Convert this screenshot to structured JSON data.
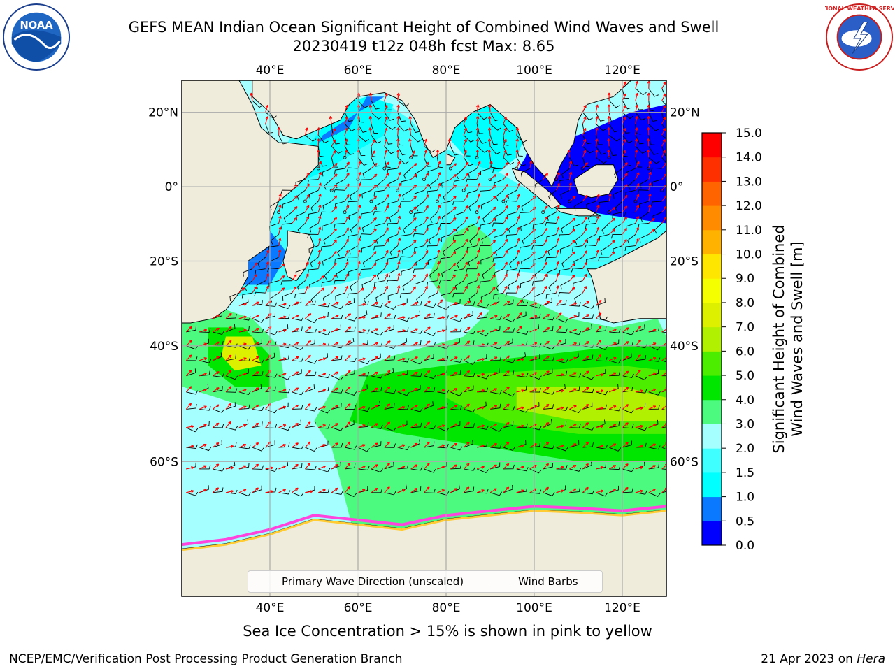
{
  "header": {
    "title_line1": "GEFS MEAN Indian Ocean Significant Height of Combined Wind Waves and Swell",
    "title_line2": "20230419 t12z 048h fcst   Max: 8.65"
  },
  "logos": {
    "left": {
      "icon": "noaa-logo-icon",
      "text": "NOAA"
    },
    "right": {
      "icon": "national-weather-service-logo-icon",
      "text": "NATIONAL WEATHER SERVICE"
    }
  },
  "map": {
    "lon_range": [
      20,
      130
    ],
    "lat_range": [
      -74,
      28
    ],
    "lon_ticks": [
      40,
      60,
      80,
      100,
      120
    ],
    "lon_tick_labels": [
      "40°E",
      "60°E",
      "80°E",
      "100°E",
      "120°E"
    ],
    "lat_ticks": [
      20,
      0,
      -20,
      -40,
      -60
    ],
    "lat_tick_labels": [
      "20°N",
      "0°",
      "20°S",
      "40°S",
      "60°S"
    ],
    "land_color": "#efecdc",
    "grid": true
  },
  "colorbar": {
    "label": "Significant Height of Combined\nWind Waves and Swell [m]",
    "levels": [
      0.0,
      0.5,
      1.0,
      1.5,
      2.0,
      3.0,
      4.0,
      5.0,
      6.0,
      7.0,
      8.0,
      9.0,
      10.0,
      11.0,
      12.0,
      13.0,
      14.0,
      15.0
    ],
    "tick_labels": [
      "0.0",
      "0.5",
      "1.0",
      "1.5",
      "2.0",
      "3.0",
      "4.0",
      "5.0",
      "6.0",
      "7.0",
      "8.0",
      "9.0",
      "10.0",
      "11.0",
      "12.0",
      "13.0",
      "14.0",
      "15.0"
    ],
    "colors": [
      "#0000ff",
      "#0a78ff",
      "#00ffff",
      "#40ffff",
      "#a6ffff",
      "#4dfa80",
      "#00e600",
      "#4ded00",
      "#b0f000",
      "#dcf000",
      "#f5ff00",
      "#ffe600",
      "#ffb300",
      "#ff8c00",
      "#ff6400",
      "#ff3000",
      "#ff0000"
    ]
  },
  "legend": {
    "wave_direction": {
      "label": "Primary Wave Direction (unscaled)",
      "color": "#ff0000"
    },
    "wind_barbs": {
      "label": "Wind Barbs",
      "color": "#000000"
    }
  },
  "subtitle": "Sea Ice Concentration > 15% is shown in pink to yellow",
  "footer": {
    "left": "NCEP/EMC/Verification Post Processing Product Generation Branch",
    "date": "21 Apr 2023 on ",
    "machine": "Hera"
  }
}
